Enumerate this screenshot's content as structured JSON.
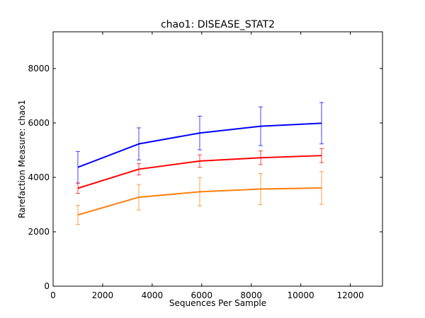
{
  "chart_data": {
    "type": "line",
    "title": "chao1: DISEASE_STAT2",
    "xlabel": "Sequences Per Sample",
    "ylabel": "Rarefaction Measure: chao1",
    "xlim": [
      0,
      13300
    ],
    "ylim": [
      0,
      9350
    ],
    "xticks": [
      0,
      2000,
      4000,
      6000,
      8000,
      10000,
      12000
    ],
    "yticks": [
      0,
      2000,
      4000,
      6000,
      8000
    ],
    "grid": false,
    "legend": "none",
    "x": [
      1000,
      3460,
      5920,
      8380,
      10840
    ],
    "series": [
      {
        "color": "#0000ff",
        "values": [
          4370,
          5230,
          5630,
          5880,
          5990
        ],
        "error": [
          580,
          590,
          620,
          710,
          760
        ]
      },
      {
        "color": "#ff0000",
        "values": [
          3600,
          4300,
          4600,
          4720,
          4800
        ],
        "error": [
          190,
          210,
          230,
          250,
          260
        ]
      },
      {
        "color": "#ff7f0e",
        "values": [
          2620,
          3270,
          3470,
          3570,
          3610
        ],
        "error": [
          350,
          470,
          520,
          570,
          600
        ]
      }
    ]
  }
}
